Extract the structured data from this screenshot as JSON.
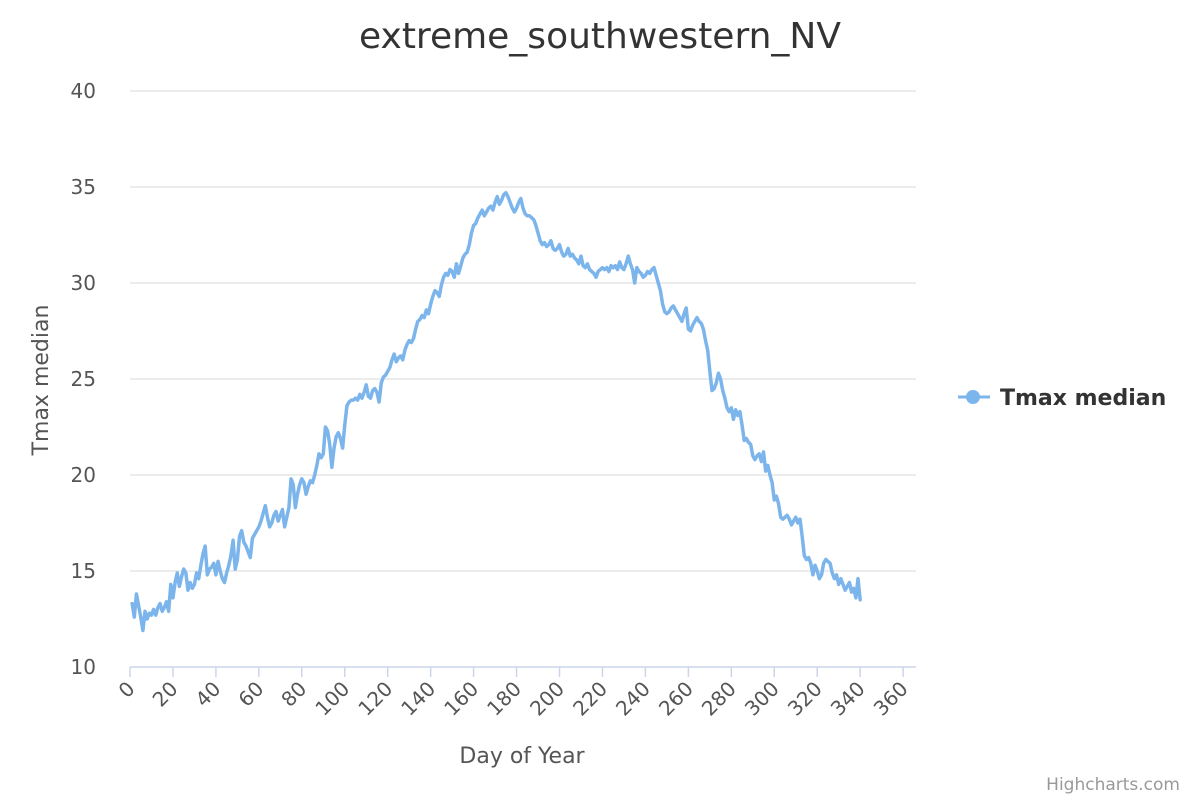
{
  "chart_data": {
    "type": "line",
    "title": "extreme_southwestern_NV",
    "xlabel": "Day of Year",
    "ylabel": "Tmax median",
    "xlim": [
      0,
      366
    ],
    "ylim": [
      10,
      40
    ],
    "xticks": [
      0,
      20,
      40,
      60,
      80,
      100,
      120,
      140,
      160,
      180,
      200,
      220,
      240,
      260,
      280,
      300,
      320,
      340,
      360
    ],
    "yticks": [
      10,
      15,
      20,
      25,
      30,
      35,
      40
    ],
    "grid": true,
    "legend": "right",
    "series": [
      {
        "name": "Tmax median",
        "color": "#7cb5ec",
        "x_start": 1,
        "x_step": 1,
        "values": [
          13.3,
          12.6,
          13.8,
          13.2,
          12.6,
          11.9,
          12.9,
          12.5,
          12.8,
          12.7,
          13.0,
          12.7,
          13.1,
          13.3,
          12.9,
          13.1,
          13.4,
          12.9,
          14.3,
          13.6,
          14.4,
          14.9,
          14.2,
          14.7,
          15.1,
          14.9,
          14.0,
          14.4,
          14.1,
          14.3,
          14.9,
          14.6,
          15.3,
          15.9,
          16.3,
          14.8,
          15.1,
          15.2,
          15.4,
          14.8,
          15.5,
          15.0,
          14.6,
          14.4,
          14.9,
          15.3,
          15.8,
          16.6,
          15.1,
          15.6,
          16.8,
          17.1,
          16.5,
          16.3,
          16.0,
          15.7,
          16.7,
          16.9,
          17.1,
          17.3,
          17.6,
          18.0,
          18.4,
          17.8,
          17.3,
          17.5,
          17.9,
          18.1,
          17.6,
          17.9,
          18.2,
          17.3,
          17.8,
          18.3,
          19.8,
          19.5,
          18.3,
          19.0,
          19.5,
          19.8,
          19.6,
          19.0,
          19.4,
          19.7,
          19.6,
          20.0,
          20.5,
          21.1,
          20.9,
          21.1,
          22.5,
          22.3,
          21.6,
          20.4,
          21.4,
          22.0,
          22.2,
          21.9,
          21.4,
          22.6,
          23.6,
          23.8,
          23.9,
          23.9,
          24.0,
          23.9,
          24.2,
          24.0,
          24.3,
          24.7,
          24.1,
          24.0,
          24.4,
          24.5,
          24.3,
          23.8,
          24.8,
          25.1,
          25.2,
          25.4,
          25.6,
          26.0,
          26.3,
          25.9,
          26.1,
          26.2,
          26.0,
          26.5,
          26.8,
          27.0,
          26.9,
          27.1,
          27.6,
          28.0,
          28.1,
          28.3,
          28.2,
          28.6,
          28.4,
          28.9,
          29.3,
          29.6,
          29.5,
          29.3,
          29.9,
          30.3,
          30.5,
          30.4,
          30.7,
          30.6,
          30.3,
          31.0,
          30.5,
          30.9,
          31.3,
          31.5,
          31.6,
          32.0,
          32.6,
          33.0,
          33.1,
          33.4,
          33.6,
          33.8,
          33.5,
          33.7,
          33.9,
          34.0,
          33.8,
          34.2,
          34.5,
          34.1,
          34.3,
          34.6,
          34.7,
          34.5,
          34.2,
          33.9,
          33.7,
          33.9,
          34.2,
          34.4,
          33.9,
          33.6,
          33.5,
          33.5,
          33.4,
          33.3,
          33.0,
          32.6,
          32.2,
          32.0,
          32.1,
          31.9,
          32.0,
          32.2,
          31.8,
          31.7,
          31.8,
          32.0,
          31.6,
          31.4,
          31.5,
          31.8,
          31.4,
          31.5,
          31.3,
          31.2,
          31.0,
          31.4,
          30.9,
          30.8,
          31.0,
          30.7,
          30.6,
          30.5,
          30.3,
          30.6,
          30.7,
          30.8,
          30.7,
          30.8,
          30.6,
          30.9,
          30.8,
          30.9,
          30.7,
          31.1,
          30.8,
          30.7,
          31.0,
          31.4,
          31.0,
          30.7,
          30.0,
          30.8,
          30.6,
          30.5,
          30.3,
          30.4,
          30.6,
          30.5,
          30.7,
          30.8,
          30.4,
          30.0,
          29.6,
          28.9,
          28.5,
          28.4,
          28.5,
          28.7,
          28.8,
          28.6,
          28.4,
          28.2,
          28.0,
          28.4,
          28.7,
          27.6,
          27.5,
          27.8,
          28.0,
          28.2,
          28.0,
          27.9,
          27.6,
          27.0,
          26.5,
          25.4,
          24.4,
          24.5,
          24.8,
          25.3,
          25.0,
          24.4,
          24.0,
          23.5,
          23.3,
          23.5,
          22.9,
          23.4,
          23.1,
          23.3,
          22.6,
          21.8,
          21.9,
          21.7,
          21.6,
          21.0,
          20.8,
          21.0,
          21.1,
          20.7,
          21.2,
          20.2,
          20.5,
          20.0,
          19.6,
          18.7,
          18.9,
          18.5,
          17.8,
          17.7,
          17.8,
          17.9,
          17.7,
          17.4,
          17.6,
          17.8,
          17.5,
          17.7,
          16.8,
          15.8,
          15.6,
          15.7,
          15.4,
          14.8,
          15.3,
          15.0,
          14.6,
          14.8,
          15.4,
          15.6,
          15.5,
          15.4,
          14.9,
          14.6,
          14.8,
          14.3,
          14.6,
          14.3,
          14.0,
          14.2,
          14.4,
          13.9,
          14.1,
          13.6,
          14.6,
          13.5
        ]
      }
    ]
  },
  "credits": "Highcharts.com"
}
